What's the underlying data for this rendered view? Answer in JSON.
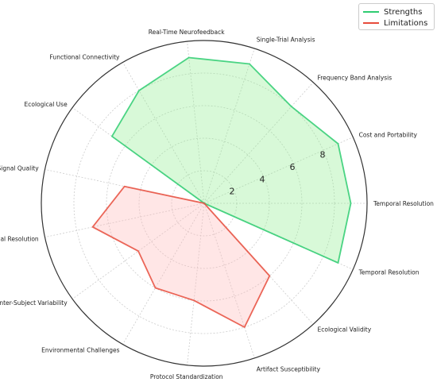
{
  "chart_data": {
    "type": "radar",
    "title": "",
    "rmax": 10,
    "r_ticks": [
      2,
      4,
      6,
      8
    ],
    "legend_position": "top-right",
    "grid": true,
    "axes": [
      "Temporal Resolution",
      "Cost and Portability",
      "Frequency Band Analysis",
      "Single-Trial Analysis",
      "Real-Time Neurofeedback",
      "Functional Connectivity",
      "Ecological Use",
      "Signal Quality",
      "Spatial Resolution",
      "Inter-Subject Variability",
      "Environmental Challenges",
      "Protocol Standardization",
      "Artifact Susceptibility",
      "Ecological Validity",
      "Temporal Resolution"
    ],
    "series": [
      {
        "name": "Strengths",
        "color": "#2ecc71",
        "fill": "#90ee90",
        "values": [
          9,
          9,
          8,
          9,
          9,
          8,
          7,
          0,
          0,
          0,
          0,
          0,
          0,
          0,
          9
        ]
      },
      {
        "name": "Limitations",
        "color": "#e74c3c",
        "fill": "#ffb6b6",
        "values": [
          0,
          0,
          0,
          0,
          0,
          0,
          0,
          5,
          7,
          5,
          6,
          6,
          8,
          6,
          0
        ]
      }
    ]
  }
}
